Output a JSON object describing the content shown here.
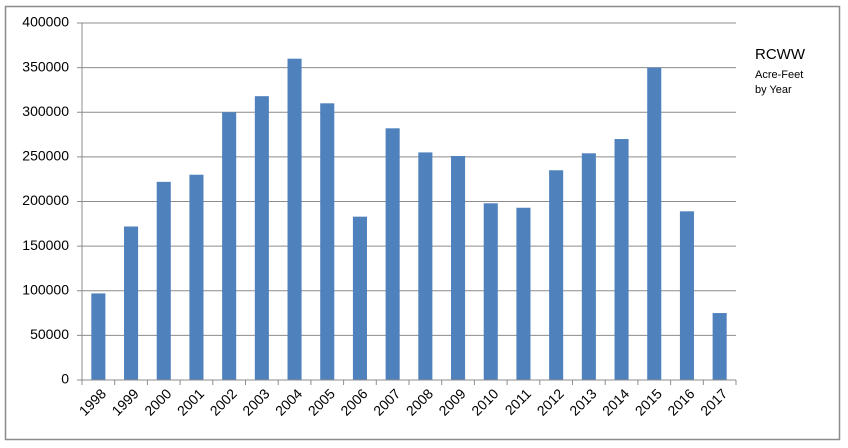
{
  "chart_data": {
    "type": "bar",
    "title": "RCWW",
    "subtitle": [
      "Acre-Feet",
      "by Year"
    ],
    "categories": [
      "1998",
      "1999",
      "2000",
      "2001",
      "2002",
      "2003",
      "2004",
      "2005",
      "2006",
      "2007",
      "2008",
      "2009",
      "2010",
      "2011",
      "2012",
      "2013",
      "2014",
      "2015",
      "2016",
      "2017"
    ],
    "values": [
      97000,
      172000,
      222000,
      230000,
      300000,
      318000,
      360000,
      310000,
      183000,
      282000,
      255000,
      251000,
      198000,
      193000,
      235000,
      254000,
      270000,
      350000,
      189000,
      75000
    ],
    "color": "#4f81bd",
    "ylim": [
      0,
      400000
    ],
    "yticks": [
      0,
      50000,
      100000,
      150000,
      200000,
      250000,
      300000,
      350000,
      400000
    ],
    "grid": true
  }
}
